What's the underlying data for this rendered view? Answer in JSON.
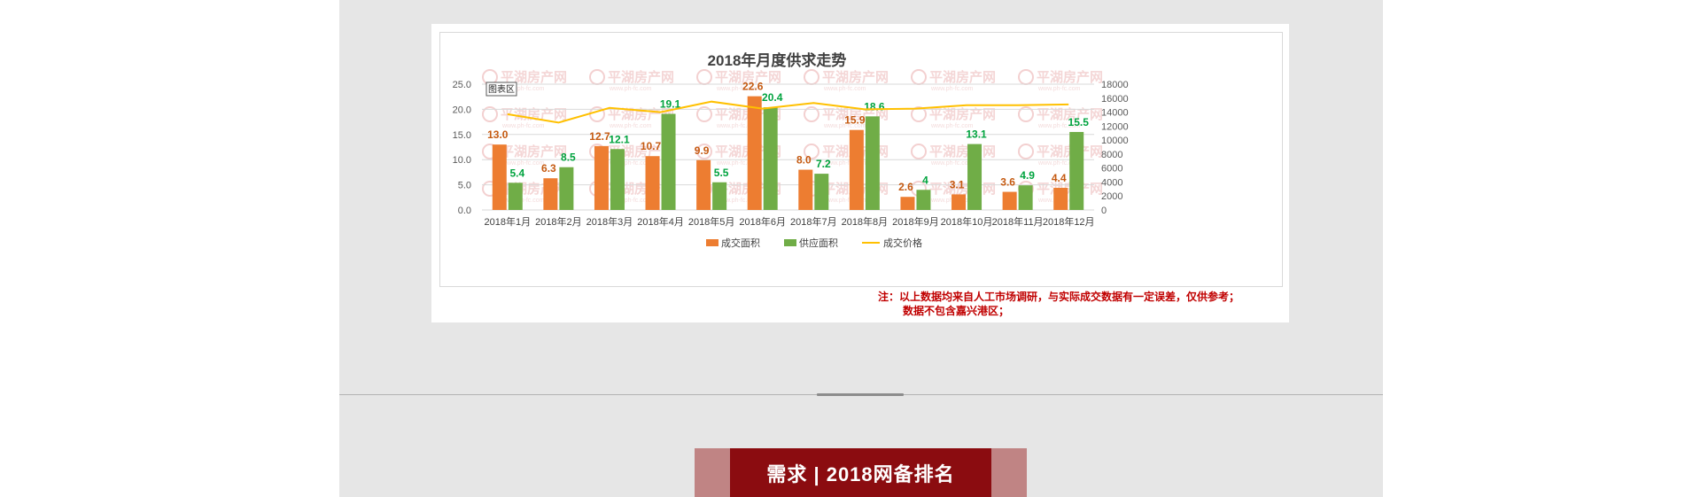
{
  "note": {
    "line1": "注：以上数据均来自人工市场调研，与实际成交数据有一定误差，仅供参考；",
    "line2": "数据不包含嘉兴港区；"
  },
  "section_title": "需求 | 2018网备排名",
  "watermark": {
    "text": "平湖房产网",
    "url": "www.ph-fc.com"
  },
  "chart_data": {
    "type": "bar",
    "title": "2018年月度供求走势",
    "area_label": "图表区",
    "categories": [
      "2018年1月",
      "2018年2月",
      "2018年3月",
      "2018年4月",
      "2018年5月",
      "2018年6月",
      "2018年7月",
      "2018年8月",
      "2018年9月",
      "2018年10月",
      "2018年11月",
      "2018年12月"
    ],
    "series": [
      {
        "name": "成交面积",
        "kind": "bar",
        "axis": "left",
        "color": "#ed7d31",
        "label_color": "#c55a11",
        "values": [
          13.0,
          6.3,
          12.7,
          10.7,
          9.9,
          22.6,
          8.0,
          15.9,
          2.6,
          3.1,
          3.6,
          4.4
        ],
        "labels": [
          "13.0",
          "6.3",
          "12.7",
          "10.7",
          "9.9",
          "22.6",
          "8.0",
          "15.9",
          "2.6",
          "3.1",
          "3.6",
          "4.4"
        ]
      },
      {
        "name": "供应面积",
        "kind": "bar",
        "axis": "left",
        "color": "#70ad47",
        "label_color": "#00a33e",
        "values": [
          5.4,
          8.5,
          12.1,
          19.1,
          5.5,
          20.4,
          7.2,
          18.6,
          4,
          13.1,
          4.9,
          15.5
        ],
        "labels": [
          "5.4",
          "8.5",
          "12.1",
          "19.1",
          "5.5",
          "20.4",
          "7.2",
          "18.6",
          "4",
          "13.1",
          "4.9",
          "15.5"
        ]
      },
      {
        "name": "成交价格",
        "kind": "line",
        "axis": "right",
        "color": "#ffc000",
        "values": [
          13700,
          12500,
          14600,
          14000,
          15500,
          14500,
          15300,
          14400,
          14500,
          15000,
          15000,
          15100
        ]
      }
    ],
    "y_left": {
      "min": 0,
      "max": 25,
      "ticks": [
        "0.0",
        "5.0",
        "10.0",
        "15.0",
        "20.0",
        "25.0"
      ]
    },
    "y_right": {
      "min": 0,
      "max": 18000,
      "ticks": [
        "0",
        "2000",
        "4000",
        "6000",
        "8000",
        "10000",
        "12000",
        "14000",
        "16000",
        "18000"
      ]
    },
    "legend_position": "bottom"
  }
}
